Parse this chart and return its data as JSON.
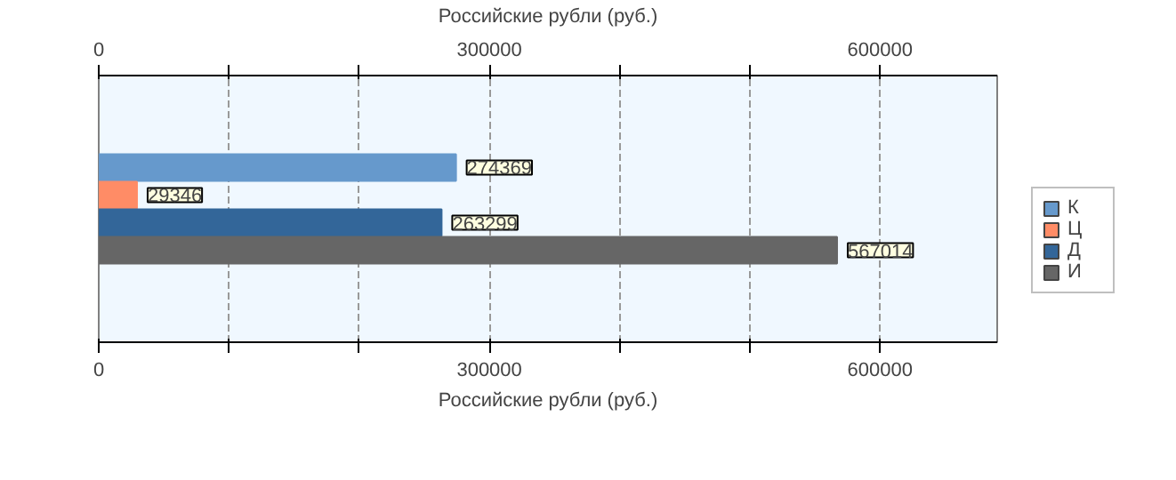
{
  "chart_data": {
    "type": "bar",
    "orientation": "horizontal",
    "categories": [
      null
    ],
    "xlabel": "Российские рубли (руб.)",
    "x2label": "Российские рубли (руб.)",
    "xlim": [
      0,
      690000
    ],
    "xticks": [
      0,
      {
        "value": 100000,
        "label": null
      },
      {
        "value": 200000,
        "label": null
      },
      300000,
      {
        "value": 400000,
        "label": null
      },
      {
        "value": 500000,
        "label": null
      },
      600000
    ],
    "x2lim": [
      0,
      690000
    ],
    "x2ticks": [
      0,
      {
        "value": 100000,
        "label": null
      },
      {
        "value": 200000,
        "label": null
      },
      300000,
      {
        "value": 400000,
        "label": null
      },
      {
        "value": 500000,
        "label": null
      },
      600000
    ],
    "series": [
      {
        "name": "К",
        "color": "#6699cc",
        "values": [
          274369
        ]
      },
      {
        "name": "Ц",
        "color": "#ff8c66",
        "values": [
          29346
        ]
      },
      {
        "name": "Д",
        "color": "#336699",
        "values": [
          263299
        ]
      },
      {
        "name": "И",
        "color": "#666666",
        "values": [
          567014
        ]
      }
    ],
    "data_labels": true,
    "grid": "x",
    "legend": "right"
  }
}
